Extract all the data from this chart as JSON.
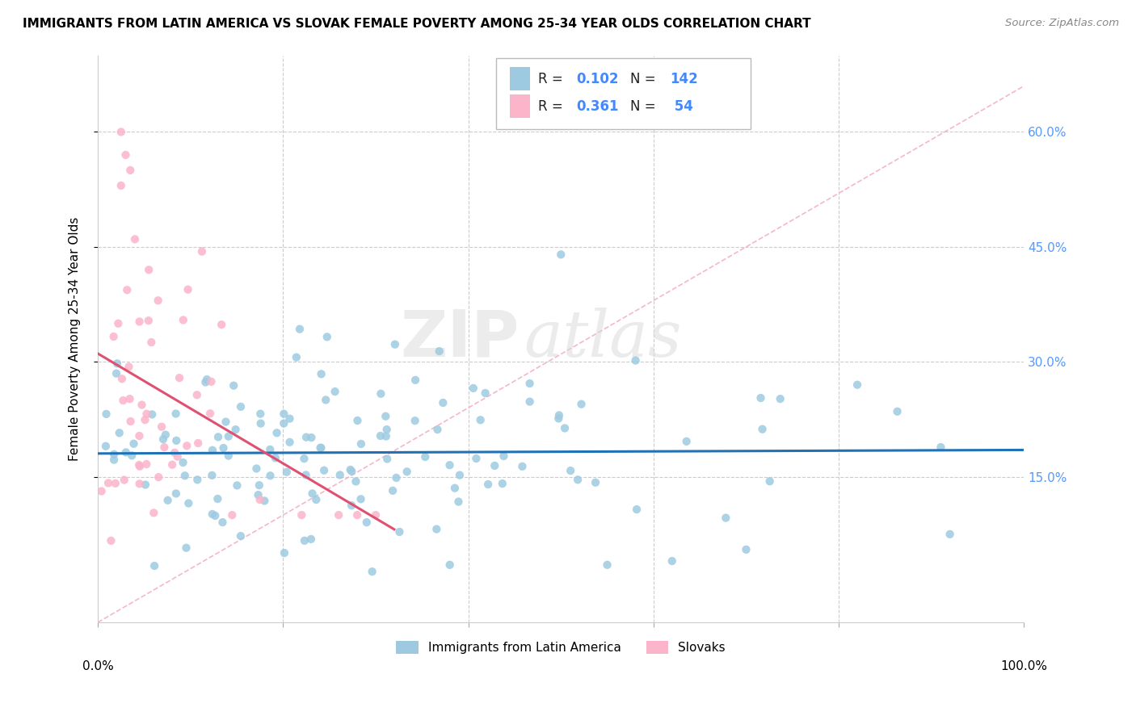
{
  "title": "IMMIGRANTS FROM LATIN AMERICA VS SLOVAK FEMALE POVERTY AMONG 25-34 YEAR OLDS CORRELATION CHART",
  "source": "Source: ZipAtlas.com",
  "ylabel": "Female Poverty Among 25-34 Year Olds",
  "yticks": [
    "15.0%",
    "30.0%",
    "45.0%",
    "60.0%"
  ],
  "ytick_vals": [
    0.15,
    0.3,
    0.45,
    0.6
  ],
  "xlim": [
    0.0,
    1.0
  ],
  "ylim": [
    -0.04,
    0.7
  ],
  "legend_label1": "Immigrants from Latin America",
  "legend_label2": "Slovaks",
  "R1": 0.102,
  "N1": 142,
  "R2": 0.361,
  "N2": 54,
  "color_blue": "#9ecae1",
  "color_pink": "#fbb4c9",
  "trendline_color_blue": "#2171b5",
  "trendline_color_pink": "#e05070",
  "diagonal_color": "#f4b8c8",
  "background_color": "#ffffff",
  "watermark_zip": "ZIP",
  "watermark_atlas": "atlas",
  "tick_label_color": "#5599ff",
  "legend_text_color_black": "#222222",
  "legend_text_color_blue": "#4488ff"
}
